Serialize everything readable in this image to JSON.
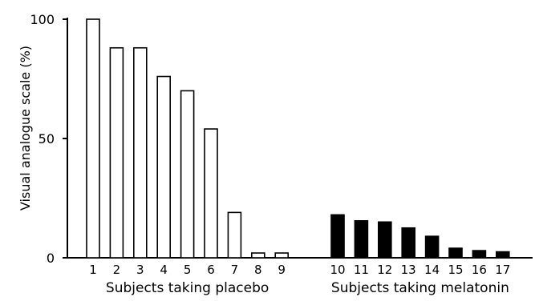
{
  "chart_data": {
    "type": "bar",
    "ylabel": "Visual analogue scale (%)",
    "ylim": [
      0,
      100
    ],
    "yticks": [
      "0",
      "50",
      "100"
    ],
    "grid": false,
    "groups": [
      {
        "label": "Subjects taking placebo",
        "style": "open",
        "categories": [
          "1",
          "2",
          "3",
          "4",
          "5",
          "6",
          "7",
          "8",
          "9"
        ],
        "values": [
          100,
          88,
          88,
          76,
          70,
          54,
          19,
          2,
          2
        ]
      },
      {
        "label": "Subjects taking melatonin",
        "style": "filled",
        "categories": [
          "10",
          "11",
          "12",
          "13",
          "14",
          "15",
          "16",
          "17"
        ],
        "values": [
          18,
          15.5,
          15,
          12.5,
          9,
          4,
          3,
          2.5
        ]
      }
    ],
    "colors": {
      "placebo_fill": "#ffffff",
      "melatonin_fill": "#000000",
      "stroke": "#000000"
    }
  }
}
